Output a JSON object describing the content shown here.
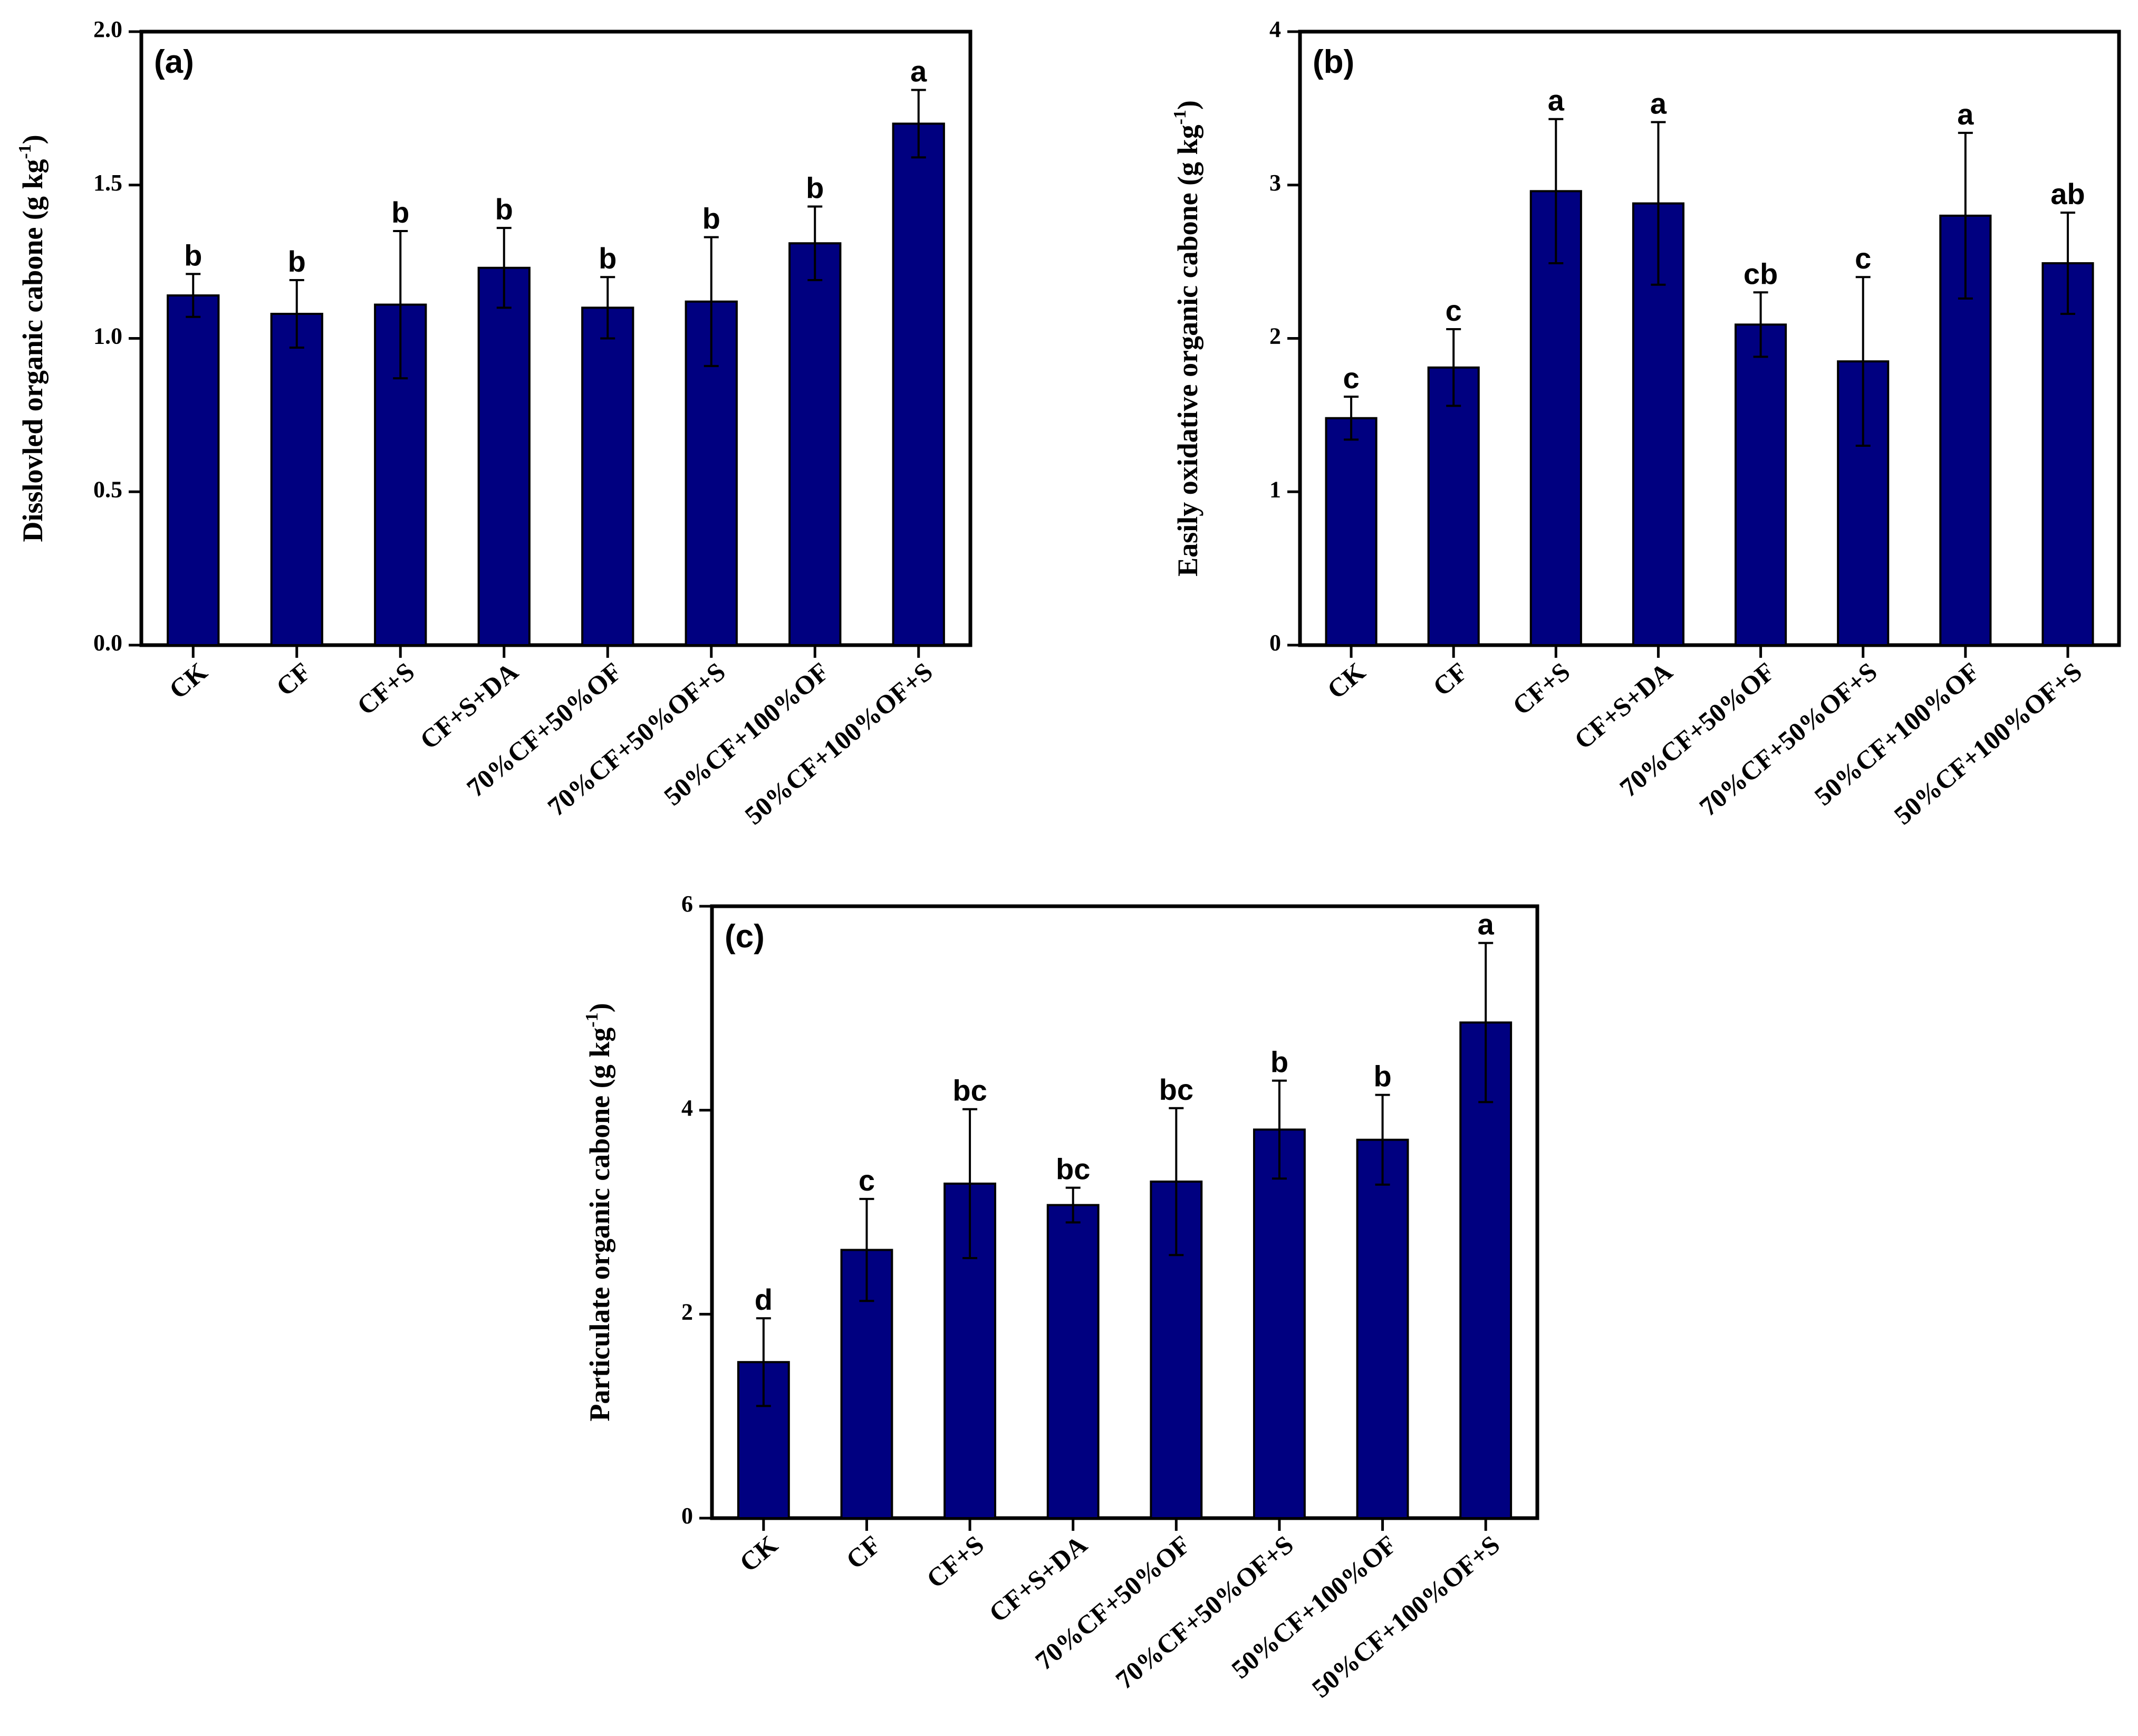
{
  "figure": {
    "colors": {
      "bar_fill": "#000080",
      "axis": "#000000",
      "background": "#ffffff"
    }
  },
  "chart_data": [
    {
      "type": "bar",
      "panel_label": "(a)",
      "ylabel": "Disslovled organic cabone (g kg",
      "ylabel_unit_sup": "-1",
      "ylabel_close": ")",
      "xlabel": "",
      "ylim": [
        0,
        2.0
      ],
      "yticks": [
        0.0,
        0.5,
        1.0,
        1.5,
        2.0
      ],
      "ytick_labels": [
        "0.0",
        "0.5",
        "1.0",
        "1.5",
        "2.0"
      ],
      "categories": [
        "CK",
        "CF",
        "CF+S",
        "CF+S+DA",
        "70%CF+50%OF",
        "70%CF+50%OF+S",
        "50%CF+100%OF",
        "50%CF+100%OF+S"
      ],
      "values": [
        1.14,
        1.08,
        1.11,
        1.23,
        1.1,
        1.12,
        1.31,
        1.7
      ],
      "errors": [
        0.07,
        0.11,
        0.24,
        0.13,
        0.1,
        0.21,
        0.12,
        0.11
      ],
      "significance": [
        "b",
        "b",
        "b",
        "b",
        "b",
        "b",
        "b",
        "a"
      ]
    },
    {
      "type": "bar",
      "panel_label": "(b)",
      "ylabel": "Easily oxidative organic cabone (g kg",
      "ylabel_unit_sup": "-1",
      "ylabel_close": ")",
      "xlabel": "",
      "ylim": [
        0,
        4
      ],
      "yticks": [
        0,
        1,
        2,
        3,
        4
      ],
      "ytick_labels": [
        "0",
        "1",
        "2",
        "3",
        "4"
      ],
      "categories": [
        "CK",
        "CF",
        "CF+S",
        "CF+S+DA",
        "70%CF+50%OF",
        "70%CF+50%OF+S",
        "50%CF+100%OF",
        "50%CF+100%OF+S"
      ],
      "values": [
        1.48,
        1.81,
        2.96,
        2.88,
        2.09,
        1.85,
        2.8,
        2.49
      ],
      "errors": [
        0.14,
        0.25,
        0.47,
        0.53,
        0.21,
        0.55,
        0.54,
        0.33
      ],
      "significance": [
        "c",
        "c",
        "a",
        "a",
        "cb",
        "c",
        "a",
        "ab"
      ]
    },
    {
      "type": "bar",
      "panel_label": "(c)",
      "ylabel": "Particulate organic cabone (g kg",
      "ylabel_unit_sup": "-1",
      "ylabel_close": ")",
      "xlabel": "",
      "ylim": [
        0,
        6
      ],
      "yticks": [
        0,
        2,
        4,
        6
      ],
      "ytick_labels": [
        "0",
        "2",
        "4",
        "6"
      ],
      "categories": [
        "CK",
        "CF",
        "CF+S",
        "CF+S+DA",
        "70%CF+50%OF",
        "70%CF+50%OF+S",
        "50%CF+100%OF",
        "50%CF+100%OF+S"
      ],
      "values": [
        1.53,
        2.63,
        3.28,
        3.07,
        3.3,
        3.81,
        3.71,
        4.86
      ],
      "errors": [
        0.43,
        0.5,
        0.73,
        0.17,
        0.72,
        0.48,
        0.44,
        0.78
      ],
      "significance": [
        "d",
        "c",
        "bc",
        "bc",
        "bc",
        "b",
        "b",
        "a"
      ]
    }
  ]
}
